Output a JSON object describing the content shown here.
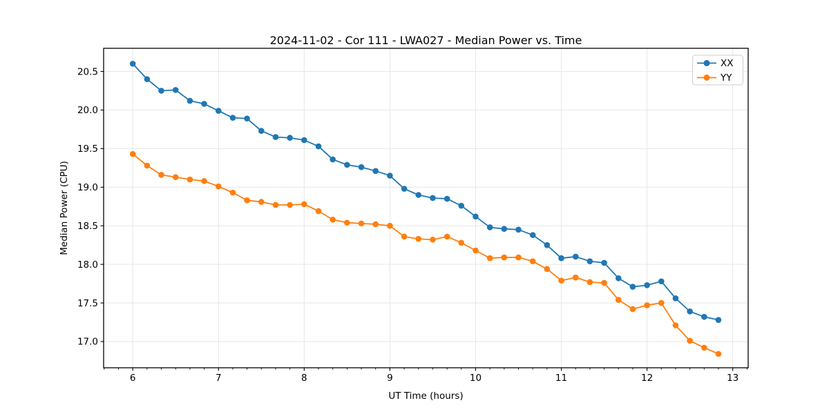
{
  "figure": {
    "background_color": "#ffffff",
    "plot_background_color": "#ffffff",
    "spine_color": "#000000",
    "grid_color": "#e6e6e6"
  },
  "chart_data": {
    "type": "line",
    "title": "2024-11-02 - Cor 111 - LWA027 - Median Power vs. Time",
    "xlabel": "UT Time (hours)",
    "ylabel": "Median Power (CPU)",
    "xlim": [
      5.66,
      13.18
    ],
    "ylim": [
      16.66,
      20.8
    ],
    "x_major_ticks": [
      6,
      7,
      8,
      9,
      10,
      11,
      12,
      13
    ],
    "y_major_ticks": [
      17.0,
      17.5,
      18.0,
      18.5,
      19.0,
      19.5,
      20.0,
      20.5
    ],
    "x_minor_tick_step_sixths": 1,
    "grid": true,
    "legend_position": "upper right",
    "marker": "circle",
    "x": [
      6.0,
      6.167,
      6.333,
      6.5,
      6.667,
      6.833,
      7.0,
      7.167,
      7.333,
      7.5,
      7.667,
      7.833,
      8.0,
      8.167,
      8.333,
      8.5,
      8.667,
      8.833,
      9.0,
      9.167,
      9.333,
      9.5,
      9.667,
      9.833,
      10.0,
      10.167,
      10.333,
      10.5,
      10.667,
      10.833,
      11.0,
      11.167,
      11.333,
      11.5,
      11.667,
      11.833,
      12.0,
      12.167,
      12.333,
      12.5,
      12.667,
      12.833
    ],
    "series": [
      {
        "name": "XX",
        "color": "#1f77b4",
        "values": [
          20.6,
          20.4,
          20.25,
          20.26,
          20.12,
          20.08,
          19.99,
          19.9,
          19.89,
          19.73,
          19.65,
          19.64,
          19.61,
          19.53,
          19.36,
          19.29,
          19.26,
          19.21,
          19.15,
          18.98,
          18.9,
          18.86,
          18.85,
          18.76,
          18.62,
          18.48,
          18.46,
          18.45,
          18.38,
          18.25,
          18.08,
          18.1,
          18.04,
          18.02,
          17.82,
          17.71,
          17.73,
          17.78,
          17.56,
          17.39,
          17.32,
          17.28
        ]
      },
      {
        "name": "YY",
        "color": "#ff7f0e",
        "values": [
          19.43,
          19.28,
          19.16,
          19.13,
          19.1,
          19.08,
          19.01,
          18.93,
          18.83,
          18.81,
          18.77,
          18.77,
          18.78,
          18.69,
          18.58,
          18.54,
          18.53,
          18.52,
          18.5,
          18.36,
          18.33,
          18.32,
          18.36,
          18.28,
          18.18,
          18.08,
          18.09,
          18.09,
          18.04,
          17.94,
          17.79,
          17.83,
          17.77,
          17.76,
          17.54,
          17.42,
          17.47,
          17.5,
          17.21,
          17.01,
          16.92,
          16.84
        ]
      }
    ]
  }
}
